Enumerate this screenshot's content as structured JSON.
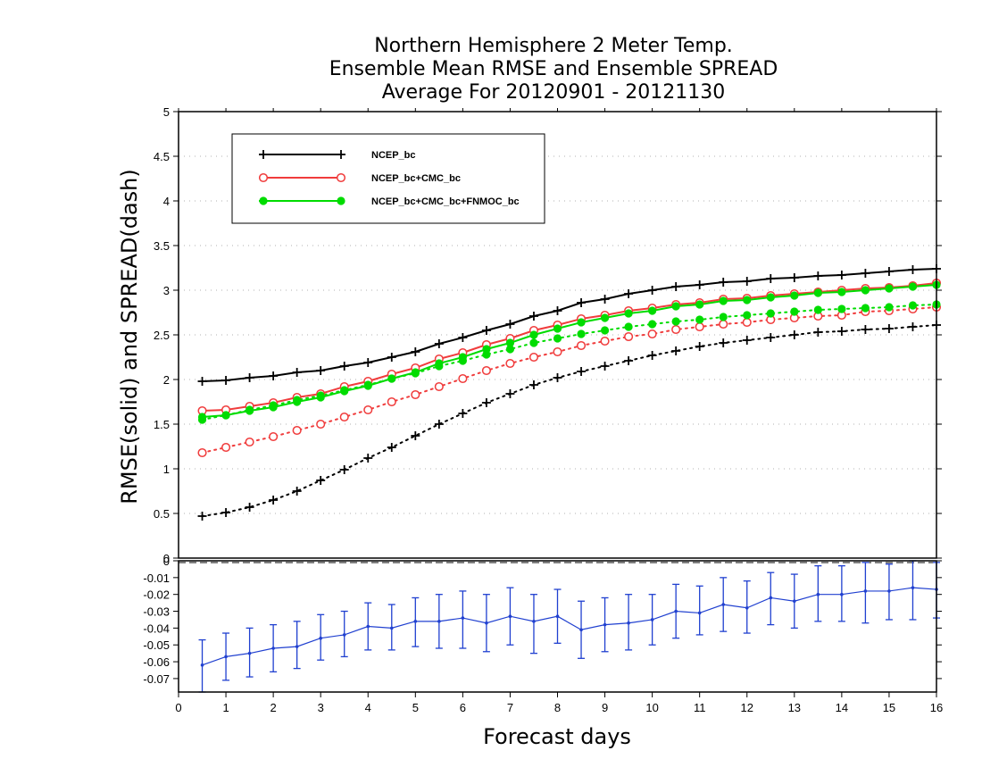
{
  "chart_data": [
    {
      "type": "line",
      "title_lines": [
        "Northern Hemisphere 2 Meter Temp.",
        "Ensemble Mean RMSE and Ensemble SPREAD",
        "Average For 20120901 - 20121130"
      ],
      "ylabel": "RMSE(solid) and SPREAD(dash)",
      "xlim": [
        0,
        16
      ],
      "ylim": [
        0,
        5
      ],
      "yticks": [
        "0",
        "0.5",
        "1",
        "1.5",
        "2",
        "2.5",
        "3",
        "3.5",
        "4",
        "4.5",
        "5"
      ],
      "grid": true,
      "legend_position": "top-left",
      "x": [
        0.5,
        1,
        1.5,
        2,
        2.5,
        3,
        3.5,
        4,
        4.5,
        5,
        5.5,
        6,
        6.5,
        7,
        7.5,
        8,
        8.5,
        9,
        9.5,
        10,
        10.5,
        11,
        11.5,
        12,
        12.5,
        13,
        13.5,
        14,
        14.5,
        15,
        15.5,
        16
      ],
      "series": [
        {
          "name": "NCEP_bc",
          "color": "#000000",
          "marker": "plus",
          "rmse": [
            1.98,
            1.99,
            2.02,
            2.04,
            2.08,
            2.1,
            2.15,
            2.19,
            2.25,
            2.31,
            2.4,
            2.47,
            2.55,
            2.62,
            2.71,
            2.77,
            2.86,
            2.9,
            2.96,
            3.0,
            3.04,
            3.06,
            3.09,
            3.1,
            3.13,
            3.14,
            3.16,
            3.17,
            3.19,
            3.21,
            3.23,
            3.24
          ],
          "spread": [
            0.47,
            0.51,
            0.57,
            0.65,
            0.75,
            0.87,
            0.99,
            1.12,
            1.24,
            1.37,
            1.5,
            1.62,
            1.74,
            1.84,
            1.94,
            2.02,
            2.09,
            2.15,
            2.21,
            2.27,
            2.32,
            2.37,
            2.41,
            2.44,
            2.47,
            2.5,
            2.53,
            2.54,
            2.56,
            2.57,
            2.59,
            2.61
          ]
        },
        {
          "name": "NCEP_bc+CMC_bc",
          "color": "#f03c3c",
          "marker": "open-circle",
          "rmse": [
            1.65,
            1.66,
            1.7,
            1.74,
            1.8,
            1.84,
            1.92,
            1.98,
            2.06,
            2.13,
            2.23,
            2.3,
            2.39,
            2.46,
            2.55,
            2.61,
            2.68,
            2.72,
            2.77,
            2.8,
            2.84,
            2.86,
            2.9,
            2.91,
            2.94,
            2.96,
            2.98,
            3.0,
            3.02,
            3.03,
            3.05,
            3.08
          ],
          "spread": [
            1.18,
            1.24,
            1.3,
            1.36,
            1.43,
            1.5,
            1.58,
            1.66,
            1.75,
            1.83,
            1.92,
            2.01,
            2.1,
            2.18,
            2.25,
            2.31,
            2.38,
            2.43,
            2.48,
            2.51,
            2.56,
            2.59,
            2.62,
            2.64,
            2.67,
            2.69,
            2.71,
            2.72,
            2.76,
            2.77,
            2.79,
            2.81
          ]
        },
        {
          "name": "NCEP_bc+CMC_bc+FNMOC_bc",
          "color": "#00dc00",
          "marker": "filled-circle",
          "rmse": [
            1.58,
            1.6,
            1.65,
            1.69,
            1.75,
            1.8,
            1.87,
            1.93,
            2.01,
            2.08,
            2.18,
            2.25,
            2.34,
            2.41,
            2.5,
            2.57,
            2.64,
            2.69,
            2.74,
            2.77,
            2.82,
            2.84,
            2.88,
            2.89,
            2.92,
            2.94,
            2.97,
            2.98,
            3.0,
            3.02,
            3.04,
            3.06
          ],
          "spread": [
            1.55,
            1.6,
            1.66,
            1.71,
            1.77,
            1.82,
            1.88,
            1.94,
            2.01,
            2.07,
            2.15,
            2.21,
            2.28,
            2.34,
            2.41,
            2.46,
            2.51,
            2.55,
            2.59,
            2.62,
            2.65,
            2.67,
            2.7,
            2.72,
            2.74,
            2.76,
            2.78,
            2.79,
            2.8,
            2.81,
            2.83,
            2.84
          ]
        }
      ]
    },
    {
      "type": "line",
      "xlabel": "Forecast days",
      "xlim": [
        0,
        16
      ],
      "xticks": [
        "0",
        "1",
        "2",
        "3",
        "4",
        "5",
        "6",
        "7",
        "8",
        "9",
        "10",
        "11",
        "12",
        "13",
        "14",
        "15",
        "16"
      ],
      "ylim": [
        -0.078,
        0
      ],
      "yticks": [
        "0",
        "-0.01",
        "-0.02",
        "-0.03",
        "-0.04",
        "-0.05",
        "-0.06",
        "-0.07"
      ],
      "series": [
        {
          "color": "#2040d0",
          "x": [
            0.5,
            1,
            1.5,
            2,
            2.5,
            3,
            3.5,
            4,
            4.5,
            5,
            5.5,
            6,
            6.5,
            7,
            7.5,
            8,
            8.5,
            9,
            9.5,
            10,
            10.5,
            11,
            11.5,
            12,
            12.5,
            13,
            13.5,
            14,
            14.5,
            15,
            15.5,
            16
          ],
          "y": [
            -0.062,
            -0.057,
            -0.055,
            -0.052,
            -0.051,
            -0.046,
            -0.044,
            -0.039,
            -0.04,
            -0.036,
            -0.036,
            -0.034,
            -0.037,
            -0.033,
            -0.036,
            -0.033,
            -0.041,
            -0.038,
            -0.037,
            -0.035,
            -0.03,
            -0.031,
            -0.026,
            -0.028,
            -0.022,
            -0.024,
            -0.02,
            -0.02,
            -0.018,
            -0.018,
            -0.016,
            -0.017
          ],
          "upper": [
            -0.047,
            -0.043,
            -0.04,
            -0.038,
            -0.036,
            -0.032,
            -0.03,
            -0.025,
            -0.026,
            -0.022,
            -0.02,
            -0.018,
            -0.02,
            -0.016,
            -0.02,
            -0.017,
            -0.024,
            -0.022,
            -0.02,
            -0.02,
            -0.014,
            -0.015,
            -0.01,
            -0.012,
            -0.007,
            -0.008,
            -0.003,
            -0.003,
            -0.001,
            -0.002,
            0.0,
            -0.001
          ],
          "lower": [
            -0.078,
            -0.071,
            -0.069,
            -0.066,
            -0.064,
            -0.059,
            -0.057,
            -0.053,
            -0.053,
            -0.051,
            -0.052,
            -0.052,
            -0.054,
            -0.05,
            -0.055,
            -0.049,
            -0.058,
            -0.054,
            -0.053,
            -0.05,
            -0.046,
            -0.044,
            -0.042,
            -0.043,
            -0.038,
            -0.04,
            -0.036,
            -0.036,
            -0.037,
            -0.035,
            -0.035,
            -0.034
          ]
        }
      ]
    }
  ]
}
